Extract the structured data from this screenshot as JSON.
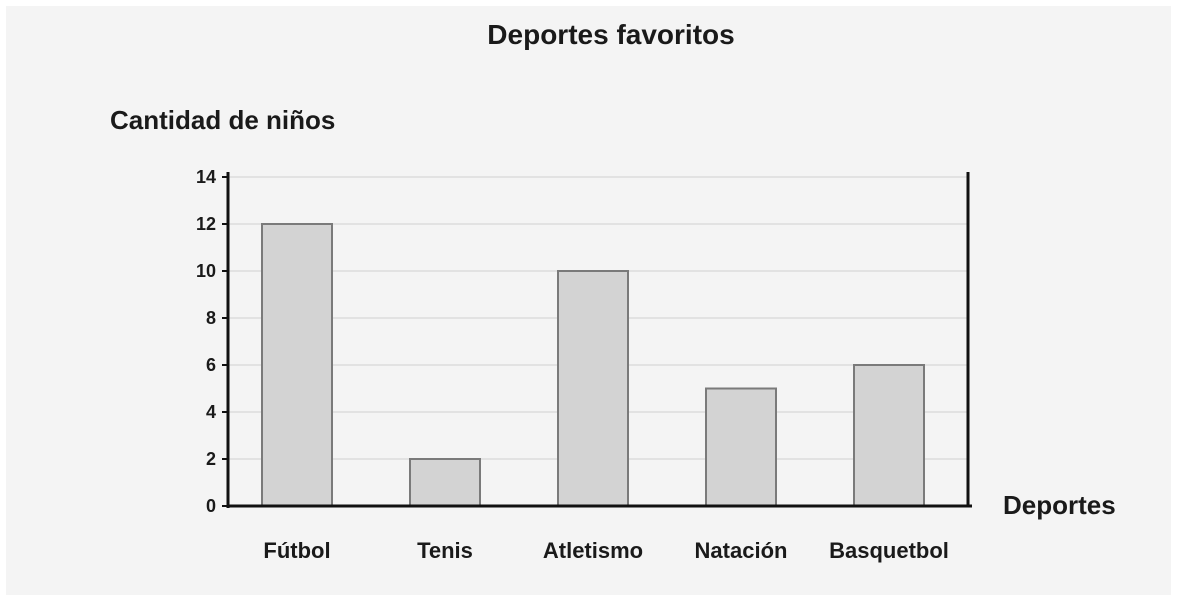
{
  "chart_data": {
    "type": "bar",
    "title": "Deportes favoritos",
    "ylabel": "Cantidad de niños",
    "xlabel": "Deportes",
    "categories": [
      "Fútbol",
      "Tenis",
      "Atletismo",
      "Natación",
      "Basquetbol"
    ],
    "values": [
      12,
      2,
      10,
      5,
      6
    ],
    "ylim": [
      0,
      14
    ],
    "yticks": [
      0,
      2,
      4,
      6,
      8,
      10,
      12,
      14
    ],
    "grid": true,
    "colors": {
      "bar_fill": "#d3d3d3",
      "bar_stroke": "#7a7a7a",
      "axis": "#111111",
      "grid": "#e2e2e2"
    }
  }
}
